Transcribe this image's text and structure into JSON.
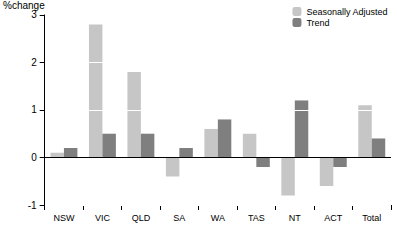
{
  "chart_data": {
    "type": "bar",
    "categories": [
      "NSW",
      "VIC",
      "QLD",
      "SA",
      "WA",
      "TAS",
      "NT",
      "ACT",
      "Total"
    ],
    "series": [
      {
        "name": "Seasonally Adjusted",
        "color": "#c6c6c6",
        "values": [
          0.1,
          2.8,
          1.8,
          -0.4,
          0.6,
          0.5,
          -0.8,
          -0.6,
          1.1
        ]
      },
      {
        "name": "Trend",
        "color": "#7f7f7f",
        "values": [
          0.2,
          0.5,
          0.5,
          0.2,
          0.8,
          -0.2,
          1.2,
          -0.2,
          0.4
        ]
      }
    ],
    "y_label": "%change",
    "ylim": [
      -1,
      3
    ],
    "yticks": [
      -1,
      0,
      1,
      2,
      3
    ],
    "grid": true,
    "legend": "top-right"
  }
}
